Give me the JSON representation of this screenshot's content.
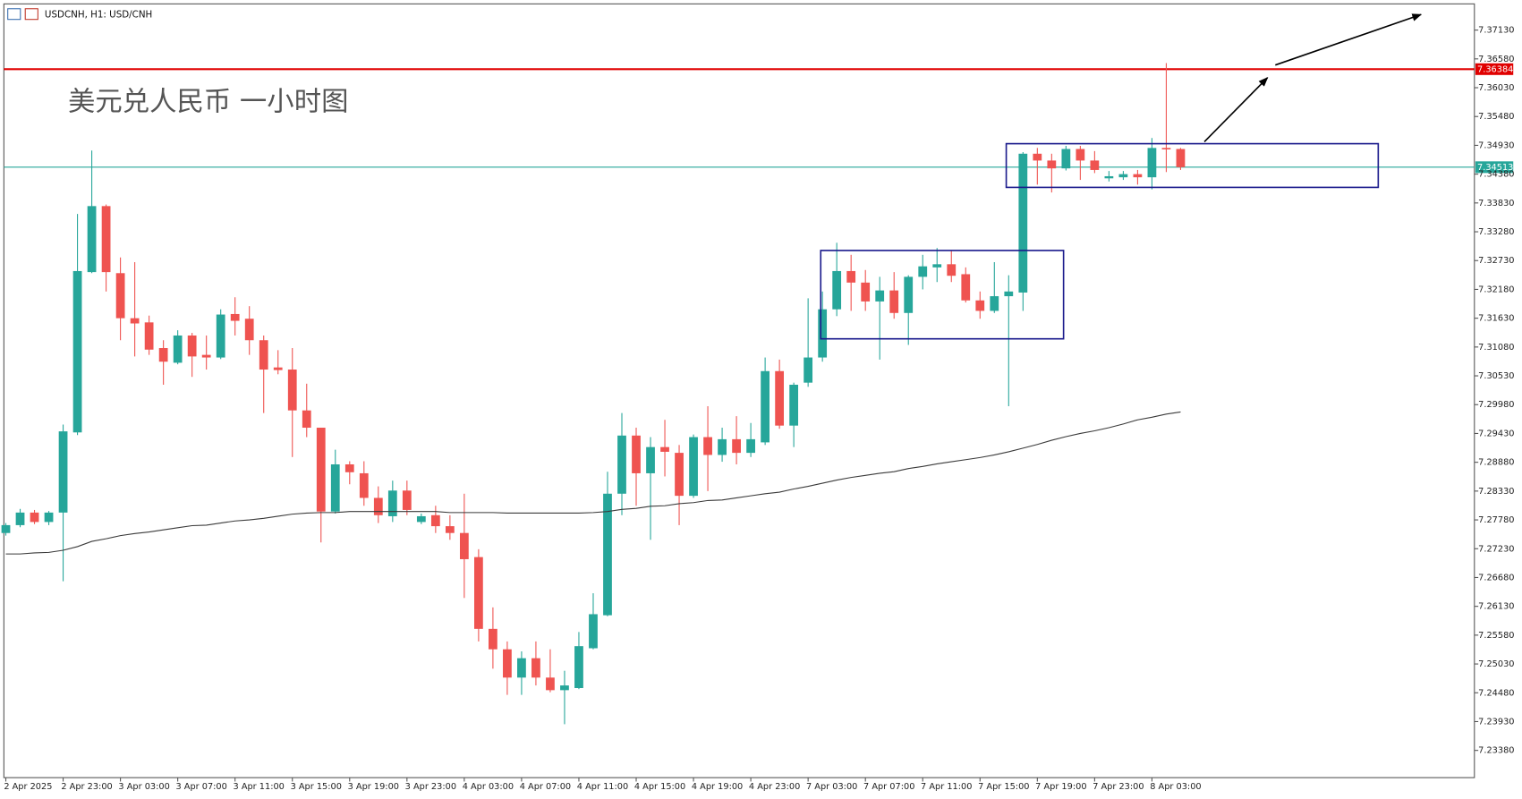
{
  "chart_data": {
    "type": "candlestick",
    "title": "USDCNH, H1:  USD/CNH",
    "annotation": "美元兑人民币 一小时图",
    "categories": [
      "2 Apr 2025",
      null,
      null,
      null,
      "2 Apr 23:00",
      null,
      null,
      null,
      "3 Apr 03:00",
      null,
      null,
      null,
      "3 Apr 07:00",
      null,
      null,
      null,
      "3 Apr 11:00",
      null,
      null,
      null,
      "3 Apr 15:00",
      null,
      null,
      null,
      "3 Apr 19:00",
      null,
      null,
      null,
      "3 Apr 23:00",
      null,
      null,
      null,
      "4 Apr 03:00",
      null,
      null,
      null,
      "4 Apr 07:00",
      null,
      null,
      null,
      "4 Apr 11:00",
      null,
      null,
      null,
      "4 Apr 15:00",
      null,
      null,
      null,
      "4 Apr 19:00",
      null,
      null,
      null,
      "4 Apr 23:00",
      null,
      null,
      null,
      "7 Apr 03:00",
      null,
      null,
      null,
      "7 Apr 07:00",
      null,
      null,
      null,
      "7 Apr 11:00",
      null,
      null,
      null,
      "7 Apr 15:00",
      null,
      null,
      null,
      "7 Apr 19:00",
      null,
      null,
      null,
      "7 Apr 23:00",
      null,
      null,
      null,
      "8 Apr 03:00",
      null,
      null
    ],
    "open": [
      7.2753,
      7.2768,
      7.2792,
      7.2774,
      7.2792,
      7.2945,
      7.3251,
      7.3377,
      7.3249,
      7.3163,
      7.3155,
      7.3106,
      7.3078,
      7.313,
      7.3093,
      7.3088,
      7.3171,
      7.3162,
      7.3121,
      7.3069,
      7.3065,
      7.2987,
      7.2954,
      7.2794,
      7.2884,
      7.2867,
      7.282,
      7.2785,
      7.2834,
      7.2774,
      7.2787,
      7.2766,
      7.2753,
      7.2707,
      7.257,
      7.2531,
      7.2477,
      7.2514,
      7.2477,
      7.2453,
      7.2457,
      7.2533,
      7.2596,
      7.2828,
      7.2939,
      7.2867,
      7.2917,
      7.2906,
      7.2824,
      7.2936,
      7.2902,
      7.2932,
      7.2906,
      7.2926,
      7.3062,
      7.2958,
      7.304,
      7.3088,
      7.318,
      7.3253,
      7.3231,
      7.3195,
      7.3216,
      7.3173,
      7.3242,
      7.326,
      7.3266,
      7.3247,
      7.3197,
      7.3177,
      7.3205,
      7.3212,
      7.3477,
      7.3464,
      7.3449,
      7.3486,
      7.3464,
      7.343,
      7.3432,
      7.3438,
      7.3432,
      7.3488,
      7.3486
    ],
    "high": [
      7.2772,
      7.2799,
      7.2797,
      7.2795,
      7.296,
      7.3362,
      7.3483,
      7.338,
      7.3279,
      7.327,
      7.3168,
      7.3121,
      7.314,
      7.3135,
      7.313,
      7.318,
      7.3203,
      7.3186,
      7.313,
      7.3102,
      7.3106,
      7.3038,
      7.2954,
      7.2912,
      7.289,
      7.289,
      7.2842,
      7.2853,
      7.2853,
      7.279,
      7.2805,
      7.2787,
      7.2828,
      7.2722,
      7.2611,
      7.2546,
      7.2527,
      7.2546,
      7.2531,
      7.249,
      7.2564,
      7.2638,
      7.287,
      7.2982,
      7.2954,
      7.2936,
      7.2969,
      7.2921,
      7.2941,
      7.2995,
      7.2954,
      7.2976,
      7.2963,
      7.3088,
      7.3084,
      7.304,
      7.3201,
      7.3214,
      7.3307,
      7.3284,
      7.3255,
      7.3242,
      7.3251,
      7.3245,
      7.3284,
      7.3297,
      7.3292,
      7.326,
      7.3214,
      7.327,
      7.3245,
      7.348,
      7.3488,
      7.3477,
      7.3492,
      7.3492,
      7.3482,
      7.3444,
      7.3444,
      7.3446,
      7.3507,
      7.365,
      7.3488
    ],
    "low": [
      7.2748,
      7.2764,
      7.277,
      7.2768,
      7.2661,
      7.294,
      7.3249,
      7.3214,
      7.3121,
      7.309,
      7.3093,
      7.3036,
      7.3075,
      7.3051,
      7.3065,
      7.3085,
      7.313,
      7.3093,
      7.2982,
      7.3056,
      7.2898,
      7.2936,
      7.2735,
      7.279,
      7.2846,
      7.2805,
      7.2772,
      7.2774,
      7.2787,
      7.277,
      7.2753,
      7.274,
      7.2629,
      7.2546,
      7.2494,
      7.2444,
      7.2444,
      7.2462,
      7.2449,
      7.2388,
      7.2455,
      7.2531,
      7.2594,
      7.2787,
      7.2805,
      7.274,
      7.2861,
      7.2768,
      7.282,
      7.2833,
      7.2889,
      7.2884,
      7.2898,
      7.2921,
      7.2952,
      7.2917,
      7.3032,
      7.308,
      7.3167,
      7.3177,
      7.3177,
      7.3084,
      7.3162,
      7.3112,
      7.3218,
      7.3232,
      7.3232,
      7.3193,
      7.3162,
      7.3173,
      7.2995,
      7.3177,
      7.3418,
      7.3403,
      7.3445,
      7.3427,
      7.344,
      7.3424,
      7.3427,
      7.3418,
      7.3409,
      7.3442,
      7.3446
    ],
    "close": [
      7.2768,
      7.2792,
      7.2774,
      7.2792,
      7.2947,
      7.3253,
      7.3377,
      7.3251,
      7.3163,
      7.3153,
      7.3103,
      7.308,
      7.313,
      7.309,
      7.3088,
      7.317,
      7.3158,
      7.3121,
      7.3065,
      7.3064,
      7.2987,
      7.2954,
      7.2794,
      7.2884,
      7.2869,
      7.282,
      7.2787,
      7.2834,
      7.2797,
      7.2785,
      7.2766,
      7.2753,
      7.2703,
      7.257,
      7.2531,
      7.2477,
      7.2514,
      7.2477,
      7.2453,
      7.2462,
      7.2537,
      7.2598,
      7.2828,
      7.2939,
      7.2867,
      7.2917,
      7.2908,
      7.2824,
      7.2936,
      7.2902,
      7.2932,
      7.2906,
      7.2932,
      7.3062,
      7.2958,
      7.3036,
      7.3088,
      7.318,
      7.3253,
      7.3231,
      7.3195,
      7.3216,
      7.3173,
      7.3242,
      7.3262,
      7.3266,
      7.3244,
      7.3197,
      7.3177,
      7.3205,
      7.3214,
      7.3477,
      7.3464,
      7.3449,
      7.3486,
      7.3464,
      7.3446,
      7.3434,
      7.3438,
      7.3432,
      7.3488,
      7.3486,
      7.34513
    ],
    "up_color": "#26a69a",
    "down_color": "#ef5350",
    "ma": {
      "color": "#3a3a3a",
      "values": [
        7.2713,
        7.2713,
        7.2715,
        7.2716,
        7.272,
        7.2727,
        7.2737,
        7.2742,
        7.2748,
        7.2752,
        7.2755,
        7.2759,
        7.2763,
        7.2767,
        7.2768,
        7.2772,
        7.2776,
        7.2778,
        7.2781,
        7.2785,
        7.2789,
        7.2791,
        7.2792,
        7.2792,
        7.2794,
        7.2794,
        7.2794,
        7.2794,
        7.2794,
        7.2794,
        7.2794,
        7.2792,
        7.2792,
        7.2792,
        7.2792,
        7.2791,
        7.2791,
        7.2791,
        7.2791,
        7.2791,
        7.2791,
        7.2792,
        7.2794,
        7.2798,
        7.28,
        7.2804,
        7.2805,
        7.2809,
        7.2811,
        7.2815,
        7.2816,
        7.282,
        7.2824,
        7.2828,
        7.2831,
        7.2837,
        7.2842,
        7.2848,
        7.2854,
        7.2859,
        7.2863,
        7.2867,
        7.287,
        7.2876,
        7.288,
        7.2885,
        7.2889,
        7.2893,
        7.2897,
        7.2902,
        7.2908,
        7.2915,
        7.2922,
        7.293,
        7.2937,
        7.2943,
        7.2948,
        7.2954,
        7.2961,
        7.2969,
        7.2974,
        7.298,
        7.2984
      ]
    },
    "price_lines": [
      {
        "value": 7.36384,
        "color": "#e00000"
      },
      {
        "value": 7.34513,
        "color": "#26a69a"
      }
    ],
    "ylim": [
      7.2286,
      7.3763
    ],
    "yticks": [
      {
        "value": 7.2338,
        "label": "7.23380"
      },
      {
        "value": 7.2393,
        "label": "7.23930"
      },
      {
        "value": 7.2448,
        "label": "7.24480"
      },
      {
        "value": 7.2503,
        "label": "7.25030"
      },
      {
        "value": 7.2558,
        "label": "7.25580"
      },
      {
        "value": 7.2613,
        "label": "7.26130"
      },
      {
        "value": 7.2668,
        "label": "7.26680"
      },
      {
        "value": 7.2723,
        "label": "7.27230"
      },
      {
        "value": 7.2778,
        "label": "7.27780"
      },
      {
        "value": 7.2833,
        "label": "7.28330"
      },
      {
        "value": 7.2888,
        "label": "7.28880"
      },
      {
        "value": 7.2943,
        "label": "7.29430"
      },
      {
        "value": 7.2998,
        "label": "7.29980"
      },
      {
        "value": 7.3053,
        "label": "7.30530"
      },
      {
        "value": 7.3108,
        "label": "7.31080"
      },
      {
        "value": 7.3163,
        "label": "7.31630"
      },
      {
        "value": 7.3218,
        "label": "7.32180"
      },
      {
        "value": 7.3273,
        "label": "7.32730"
      },
      {
        "value": 7.3328,
        "label": "7.33280"
      },
      {
        "value": 7.3383,
        "label": "7.33830"
      },
      {
        "value": 7.3438,
        "label": "7.34380"
      },
      {
        "value": 7.3493,
        "label": "7.34930"
      },
      {
        "value": 7.3548,
        "label": "7.35480"
      },
      {
        "value": 7.3603,
        "label": "7.36030"
      },
      {
        "value": 7.3658,
        "label": "7.36580"
      },
      {
        "value": 7.3713,
        "label": "7.37130"
      }
    ],
    "grid": false
  }
}
